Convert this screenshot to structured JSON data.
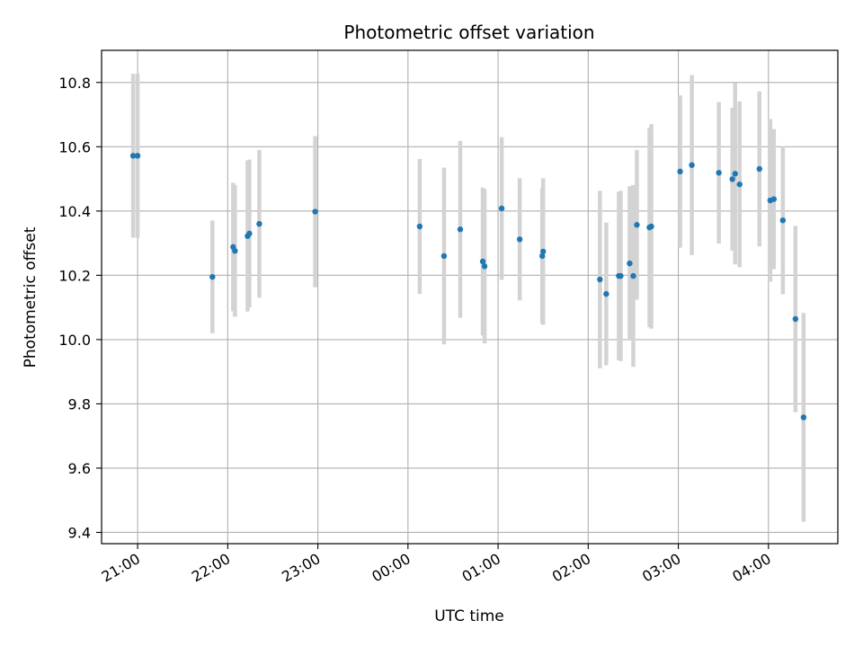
{
  "chart_data": {
    "type": "scatter",
    "title": "Photometric offset variation",
    "xlabel": "UTC time",
    "ylabel": "Photometric offset",
    "x_axis_kind": "time (hours since 21:00 UTC on the displayed night)",
    "xlim": [
      -0.4,
      7.77
    ],
    "ylim": [
      9.365,
      10.9
    ],
    "grid": true,
    "x_ticks": [
      {
        "value": 0,
        "label": "21:00"
      },
      {
        "value": 1,
        "label": "22:00"
      },
      {
        "value": 2,
        "label": "23:00"
      },
      {
        "value": 3,
        "label": "00:00"
      },
      {
        "value": 4,
        "label": "01:00"
      },
      {
        "value": 5,
        "label": "02:00"
      },
      {
        "value": 6,
        "label": "03:00"
      },
      {
        "value": 7,
        "label": "04:00"
      }
    ],
    "y_ticks": [
      {
        "value": 9.4,
        "label": "9.4"
      },
      {
        "value": 9.6,
        "label": "9.6"
      },
      {
        "value": 9.8,
        "label": "9.8"
      },
      {
        "value": 10.0,
        "label": "10.0"
      },
      {
        "value": 10.2,
        "label": "10.2"
      },
      {
        "value": 10.4,
        "label": "10.4"
      },
      {
        "value": 10.6,
        "label": "10.6"
      },
      {
        "value": 10.8,
        "label": "10.8"
      }
    ],
    "colors": {
      "point": "#1f77b4",
      "errorbar": "#d3d3d3",
      "grid": "#b0b0b0",
      "axes": "#000000"
    },
    "points": [
      {
        "x": -0.05,
        "y": 10.572,
        "err": 0.255
      },
      {
        "x": 0.0,
        "y": 10.572,
        "err": 0.255
      },
      {
        "x": 0.83,
        "y": 10.195,
        "err": 0.175
      },
      {
        "x": 1.06,
        "y": 10.288,
        "err": 0.2
      },
      {
        "x": 1.08,
        "y": 10.276,
        "err": 0.205
      },
      {
        "x": 1.22,
        "y": 10.322,
        "err": 0.235
      },
      {
        "x": 1.24,
        "y": 10.33,
        "err": 0.23
      },
      {
        "x": 1.35,
        "y": 10.36,
        "err": 0.23
      },
      {
        "x": 1.97,
        "y": 10.398,
        "err": 0.235
      },
      {
        "x": 3.13,
        "y": 10.352,
        "err": 0.21
      },
      {
        "x": 3.4,
        "y": 10.26,
        "err": 0.275
      },
      {
        "x": 3.58,
        "y": 10.343,
        "err": 0.275
      },
      {
        "x": 3.83,
        "y": 10.243,
        "err": 0.23
      },
      {
        "x": 3.85,
        "y": 10.228,
        "err": 0.24
      },
      {
        "x": 4.04,
        "y": 10.408,
        "err": 0.222
      },
      {
        "x": 4.24,
        "y": 10.312,
        "err": 0.19
      },
      {
        "x": 4.49,
        "y": 10.26,
        "err": 0.21
      },
      {
        "x": 4.5,
        "y": 10.274,
        "err": 0.228
      },
      {
        "x": 5.13,
        "y": 10.187,
        "err": 0.276
      },
      {
        "x": 5.2,
        "y": 10.142,
        "err": 0.222
      },
      {
        "x": 5.34,
        "y": 10.198,
        "err": 0.262
      },
      {
        "x": 5.36,
        "y": 10.198,
        "err": 0.265
      },
      {
        "x": 5.46,
        "y": 10.237,
        "err": 0.24
      },
      {
        "x": 5.5,
        "y": 10.198,
        "err": 0.283
      },
      {
        "x": 5.54,
        "y": 10.357,
        "err": 0.233
      },
      {
        "x": 5.68,
        "y": 10.349,
        "err": 0.31
      },
      {
        "x": 5.7,
        "y": 10.352,
        "err": 0.318
      },
      {
        "x": 6.02,
        "y": 10.523,
        "err": 0.237
      },
      {
        "x": 6.15,
        "y": 10.543,
        "err": 0.28
      },
      {
        "x": 6.45,
        "y": 10.519,
        "err": 0.22
      },
      {
        "x": 6.6,
        "y": 10.499,
        "err": 0.222
      },
      {
        "x": 6.63,
        "y": 10.516,
        "err": 0.282
      },
      {
        "x": 6.68,
        "y": 10.483,
        "err": 0.258
      },
      {
        "x": 6.9,
        "y": 10.531,
        "err": 0.241
      },
      {
        "x": 7.02,
        "y": 10.433,
        "err": 0.253
      },
      {
        "x": 7.06,
        "y": 10.437,
        "err": 0.218
      },
      {
        "x": 7.16,
        "y": 10.371,
        "err": 0.23
      },
      {
        "x": 7.3,
        "y": 10.064,
        "err": 0.29
      },
      {
        "x": 7.39,
        "y": 9.758,
        "err": 0.325
      }
    ]
  }
}
